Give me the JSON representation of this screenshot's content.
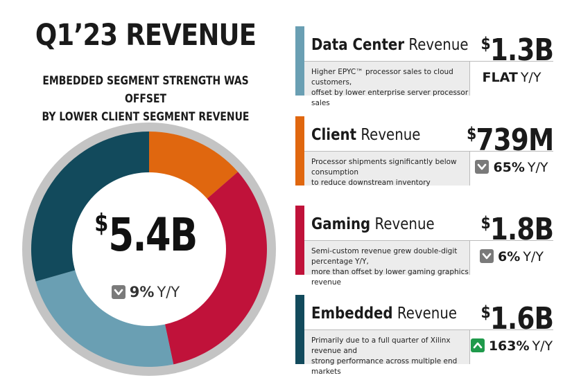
{
  "title": "Q1’23 REVENUE",
  "subtitle_line1": "EMBEDDED SEGMENT STRENGTH WAS OFFSET",
  "subtitle_line2": "BY LOWER CLIENT SEGMENT REVENUE",
  "total": {
    "currency": "$",
    "amount": "5.4B",
    "change_pct": "9%",
    "change_unit": "Y/Y",
    "direction": "down"
  },
  "segments": [
    {
      "name_bold": "Data Center",
      "name_rest": "Revenue",
      "currency": "$",
      "amount": "1.3B",
      "desc_line1": "Higher EPYC™ processor sales to cloud customers,",
      "desc_line2": "offset by lower enterprise server processor sales",
      "change_text": "FLAT",
      "change_unit": "Y/Y",
      "direction": "flat",
      "color": "#6a9fb3"
    },
    {
      "name_bold": "Client",
      "name_rest": "Revenue",
      "currency": "$",
      "amount": "739M",
      "desc_line1": "Processor shipments significantly below consumption",
      "desc_line2": "to reduce downstream inventory",
      "change_text": "65%",
      "change_unit": "Y/Y",
      "direction": "down",
      "color": "#e0670f"
    },
    {
      "name_bold": "Gaming",
      "name_rest": "Revenue",
      "currency": "$",
      "amount": "1.8B",
      "desc_line1": "Semi-custom revenue grew double-digit percentage Y/Y,",
      "desc_line2": "more than offset by lower gaming graphics revenue",
      "change_text": "6%",
      "change_unit": "Y/Y",
      "direction": "down",
      "color": "#c0123a"
    },
    {
      "name_bold": "Embedded",
      "name_rest": "Revenue",
      "currency": "$",
      "amount": "1.6B",
      "desc_line1": "Primarily due to a full quarter of Xilinx revenue and",
      "desc_line2": "strong performance across multiple end markets",
      "change_text": "163%",
      "change_unit": "Y/Y",
      "direction": "up",
      "color": "#124a5c"
    }
  ],
  "chart_data": {
    "type": "pie",
    "title": "Q1’23 REVENUE",
    "unit": "$B",
    "total": 5.4,
    "categories": [
      "Client",
      "Gaming",
      "Data Center",
      "Embedded"
    ],
    "values": [
      0.739,
      1.8,
      1.3,
      1.6
    ],
    "colors": [
      "#e0670f",
      "#c0123a",
      "#6a9fb3",
      "#124a5c"
    ],
    "legend": "none"
  }
}
